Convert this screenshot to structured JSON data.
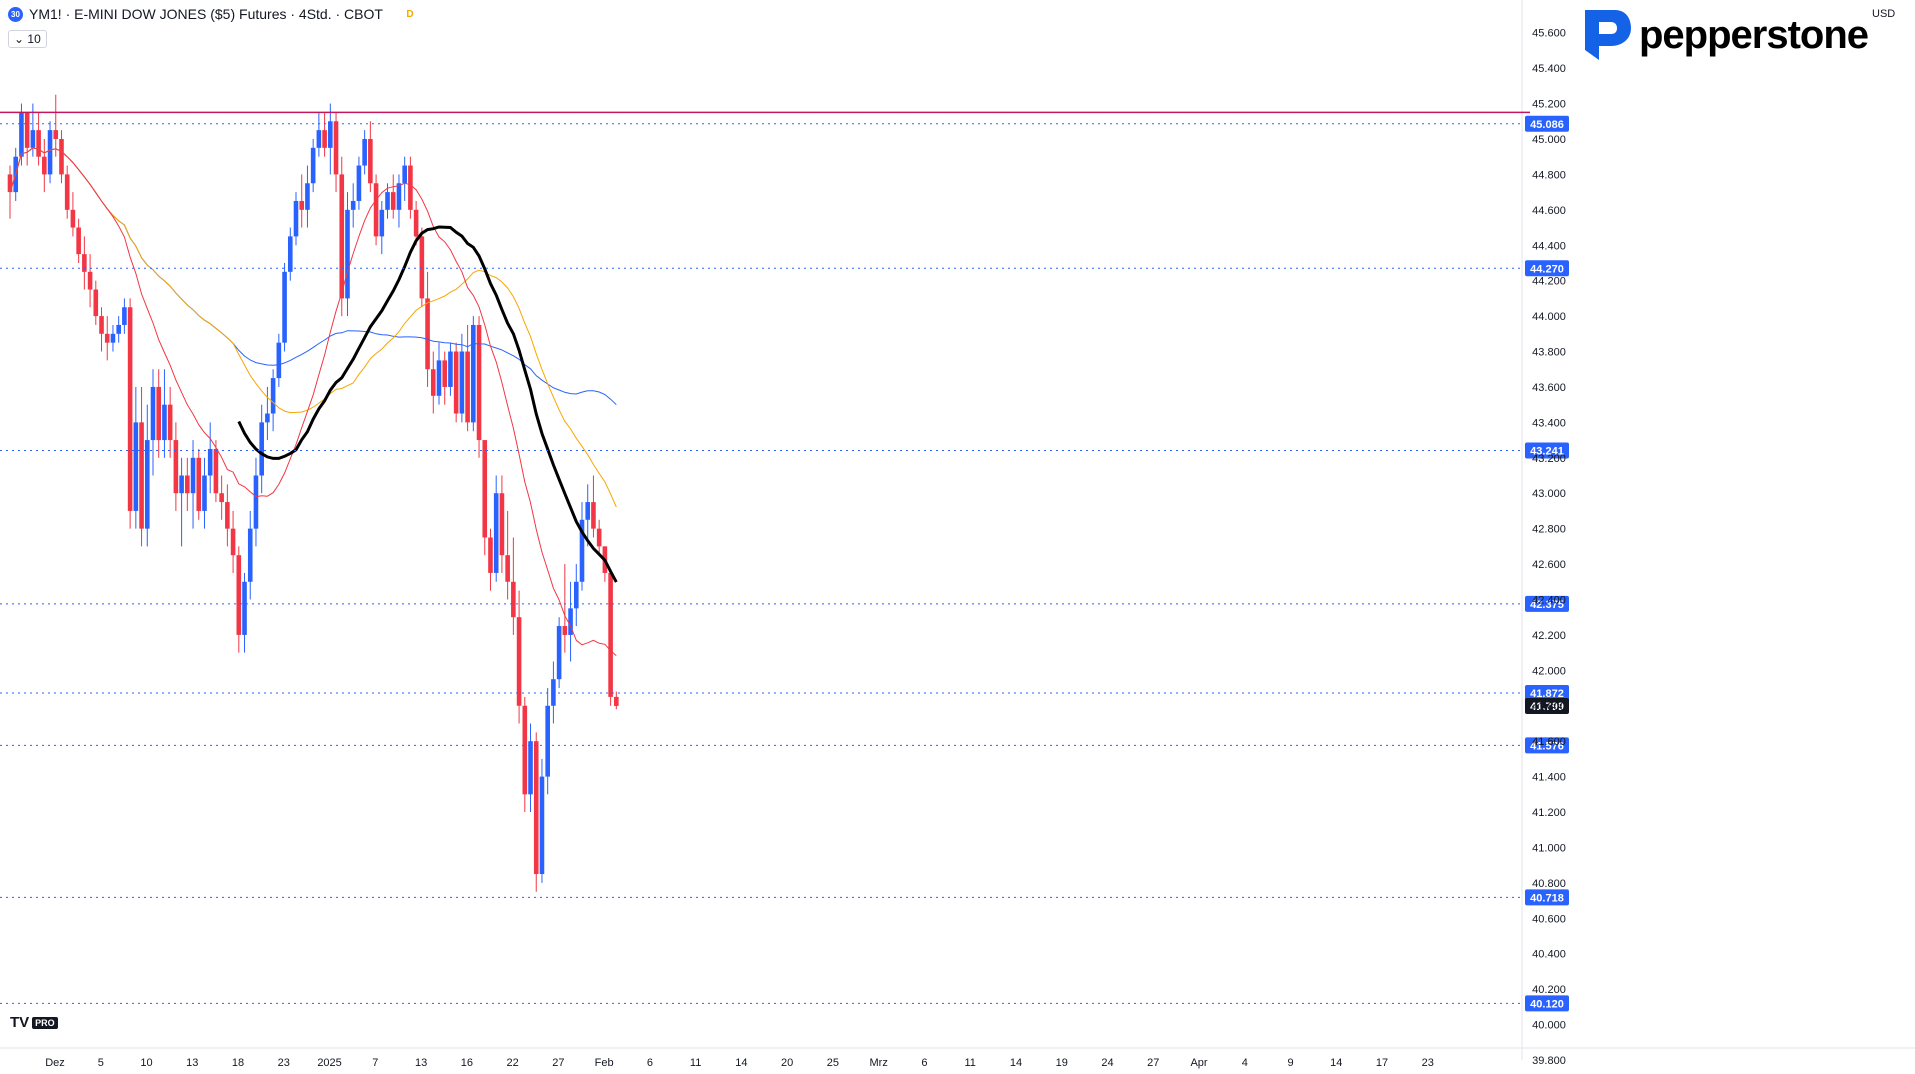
{
  "header": {
    "symbol_badge": "30",
    "title": "YM1! · E-MINI DOW JONES ($5) Futures · 4Std. · CBOT",
    "d_badge": "D",
    "indicator_toggle": "10"
  },
  "brand": {
    "name": "pepperstone",
    "logo_color": "#1462e6"
  },
  "axis": {
    "currency": "USD"
  },
  "footer": {
    "tv_logo": "TV",
    "tv_pro": "PRO"
  },
  "chart_data": {
    "type": "candlestick",
    "title": "YM1! · E-MINI DOW JONES ($5) Futures · 4Std. · CBOT",
    "ylim": [
      39800,
      45700
    ],
    "y_ticks": [
      45600,
      45400,
      45200,
      45000,
      44800,
      44600,
      44400,
      44200,
      44000,
      43800,
      43600,
      43400,
      43200,
      43000,
      42800,
      42600,
      42400,
      42200,
      42000,
      41800,
      41600,
      41400,
      41200,
      41000,
      40800,
      40600,
      40400,
      40200,
      40000,
      39800
    ],
    "x_ticks": [
      {
        "label": "Dez",
        "i": 0
      },
      {
        "label": "5",
        "i": 8
      },
      {
        "label": "10",
        "i": 16
      },
      {
        "label": "13",
        "i": 24
      },
      {
        "label": "18",
        "i": 32
      },
      {
        "label": "23",
        "i": 40
      },
      {
        "label": "2025",
        "i": 48
      },
      {
        "label": "7",
        "i": 56
      },
      {
        "label": "13",
        "i": 64
      },
      {
        "label": "16",
        "i": 72
      },
      {
        "label": "22",
        "i": 80
      },
      {
        "label": "27",
        "i": 88
      },
      {
        "label": "Feb",
        "i": 96
      },
      {
        "label": "6",
        "i": 104
      },
      {
        "label": "11",
        "i": 112
      },
      {
        "label": "14",
        "i": 120
      },
      {
        "label": "20",
        "i": 128
      },
      {
        "label": "25",
        "i": 136
      },
      {
        "label": "Mrz",
        "i": 144
      },
      {
        "label": "6",
        "i": 152
      },
      {
        "label": "11",
        "i": 160
      },
      {
        "label": "14",
        "i": 168
      },
      {
        "label": "19",
        "i": 176
      },
      {
        "label": "24",
        "i": 184
      },
      {
        "label": "27",
        "i": 192
      },
      {
        "label": "Apr",
        "i": 200
      },
      {
        "label": "4",
        "i": 208
      },
      {
        "label": "9",
        "i": 216
      },
      {
        "label": "14",
        "i": 224
      },
      {
        "label": "17",
        "i": 232
      },
      {
        "label": "23",
        "i": 240
      }
    ],
    "candles": [
      [
        44800,
        44850,
        44550,
        44700
      ],
      [
        44700,
        44950,
        44650,
        44900
      ],
      [
        44900,
        45200,
        44850,
        45150
      ],
      [
        45150,
        45150,
        44850,
        44950
      ],
      [
        44950,
        45200,
        44900,
        45050
      ],
      [
        45050,
        45150,
        44850,
        44900
      ],
      [
        44900,
        45000,
        44700,
        44800
      ],
      [
        44800,
        45100,
        44750,
        45050
      ],
      [
        45050,
        45250,
        44900,
        45000
      ],
      [
        45000,
        45050,
        44750,
        44800
      ],
      [
        44800,
        44850,
        44550,
        44600
      ],
      [
        44600,
        44700,
        44450,
        44500
      ],
      [
        44500,
        44550,
        44300,
        44350
      ],
      [
        44350,
        44450,
        44150,
        44250
      ],
      [
        44250,
        44350,
        44050,
        44150
      ],
      [
        44150,
        44200,
        43950,
        44000
      ],
      [
        44000,
        44050,
        43800,
        43900
      ],
      [
        43900,
        44000,
        43750,
        43850
      ],
      [
        43850,
        43950,
        43800,
        43900
      ],
      [
        43900,
        44000,
        43850,
        43950
      ],
      [
        43950,
        44100,
        43900,
        44050
      ],
      [
        44050,
        44100,
        42800,
        42900
      ],
      [
        42900,
        43600,
        42800,
        43400
      ],
      [
        43400,
        43600,
        42700,
        42800
      ],
      [
        42800,
        43500,
        42700,
        43300
      ],
      [
        43300,
        43700,
        43100,
        43600
      ],
      [
        43600,
        43700,
        43200,
        43300
      ],
      [
        43300,
        43700,
        43200,
        43500
      ],
      [
        43500,
        43600,
        43200,
        43300
      ],
      [
        43300,
        43400,
        42900,
        43000
      ],
      [
        43000,
        43200,
        42700,
        43100
      ],
      [
        43100,
        43200,
        42900,
        43000
      ],
      [
        43000,
        43300,
        42800,
        43200
      ],
      [
        43200,
        43250,
        42850,
        42900
      ],
      [
        42900,
        43200,
        42800,
        43100
      ],
      [
        43100,
        43400,
        43000,
        43250
      ],
      [
        43250,
        43300,
        42950,
        43000
      ],
      [
        43000,
        43100,
        42850,
        42950
      ],
      [
        42950,
        43050,
        42700,
        42800
      ],
      [
        42800,
        42900,
        42550,
        42650
      ],
      [
        42650,
        42700,
        42100,
        42200
      ],
      [
        42200,
        42550,
        42100,
        42500
      ],
      [
        42500,
        42900,
        42400,
        42800
      ],
      [
        42800,
        43200,
        42700,
        43100
      ],
      [
        43100,
        43500,
        43000,
        43400
      ],
      [
        43400,
        43600,
        43300,
        43450
      ],
      [
        43450,
        43700,
        43350,
        43650
      ],
      [
        43650,
        43900,
        43600,
        43850
      ],
      [
        43850,
        44300,
        43800,
        44250
      ],
      [
        44250,
        44500,
        44200,
        44450
      ],
      [
        44450,
        44700,
        44400,
        44650
      ],
      [
        44650,
        44800,
        44500,
        44600
      ],
      [
        44600,
        44850,
        44500,
        44750
      ],
      [
        44750,
        45000,
        44700,
        44950
      ],
      [
        44950,
        45150,
        44900,
        45050
      ],
      [
        45050,
        45150,
        44900,
        44950
      ],
      [
        44950,
        45200,
        44800,
        45100
      ],
      [
        45100,
        45150,
        44700,
        44800
      ],
      [
        44800,
        44900,
        44000,
        44100
      ],
      [
        44100,
        44700,
        44000,
        44600
      ],
      [
        44600,
        44750,
        44500,
        44650
      ],
      [
        44650,
        44900,
        44600,
        44850
      ],
      [
        44850,
        45050,
        44800,
        45000
      ],
      [
        45000,
        45100,
        44700,
        44750
      ],
      [
        44750,
        44800,
        44400,
        44450
      ],
      [
        44450,
        44650,
        44350,
        44600
      ],
      [
        44600,
        44750,
        44550,
        44700
      ],
      [
        44700,
        44800,
        44550,
        44600
      ],
      [
        44600,
        44800,
        44500,
        44750
      ],
      [
        44750,
        44900,
        44650,
        44850
      ],
      [
        44850,
        44900,
        44550,
        44600
      ],
      [
        44600,
        44650,
        44400,
        44450
      ],
      [
        44450,
        44500,
        44050,
        44100
      ],
      [
        44100,
        44250,
        43600,
        43700
      ],
      [
        43700,
        43800,
        43450,
        43550
      ],
      [
        43550,
        43850,
        43500,
        43750
      ],
      [
        43750,
        43800,
        43500,
        43600
      ],
      [
        43600,
        43850,
        43550,
        43800
      ],
      [
        43800,
        43850,
        43400,
        43450
      ],
      [
        43450,
        43900,
        43400,
        43800
      ],
      [
        43800,
        43950,
        43350,
        43400
      ],
      [
        43400,
        44000,
        43350,
        43950
      ],
      [
        43950,
        44000,
        43200,
        43300
      ],
      [
        43300,
        43300,
        42650,
        42750
      ],
      [
        42750,
        42800,
        42450,
        42550
      ],
      [
        42550,
        43100,
        42500,
        43000
      ],
      [
        43000,
        43100,
        42550,
        42650
      ],
      [
        42650,
        42900,
        42400,
        42500
      ],
      [
        42500,
        42750,
        42200,
        42300
      ],
      [
        42300,
        42450,
        41700,
        41800
      ],
      [
        41800,
        41850,
        41200,
        41300
      ],
      [
        41300,
        41700,
        41200,
        41600
      ],
      [
        41600,
        41650,
        40750,
        40850
      ],
      [
        40850,
        41500,
        40800,
        41400
      ],
      [
        41400,
        41900,
        41300,
        41800
      ],
      [
        41800,
        42050,
        41700,
        41950
      ],
      [
        41950,
        42300,
        41900,
        42250
      ],
      [
        42250,
        42600,
        42100,
        42200
      ],
      [
        42200,
        42500,
        42050,
        42350
      ],
      [
        42350,
        42600,
        42250,
        42500
      ],
      [
        42500,
        42950,
        42450,
        42850
      ],
      [
        42850,
        43050,
        42700,
        42950
      ],
      [
        42950,
        43100,
        42750,
        42800
      ],
      [
        42800,
        42850,
        42650,
        42700
      ],
      [
        42700,
        42700,
        42500,
        42550
      ],
      [
        42550,
        42550,
        41800,
        41850
      ],
      [
        41850,
        41880,
        41780,
        41799
      ]
    ],
    "annotated_levels": [
      45086,
      44270,
      43241,
      42375,
      41872,
      41799,
      41576,
      40718,
      40120
    ],
    "last_price": 41799,
    "grid": false,
    "colors": {
      "up": "#2962ff",
      "down": "#f23645",
      "sma_black": "#000000",
      "sma_blue": "#2962ff",
      "sma_orange": "#f7a600",
      "sma_red": "#f23645",
      "level_magenta": "#c2185b",
      "level_blue": "#2962ff"
    }
  }
}
